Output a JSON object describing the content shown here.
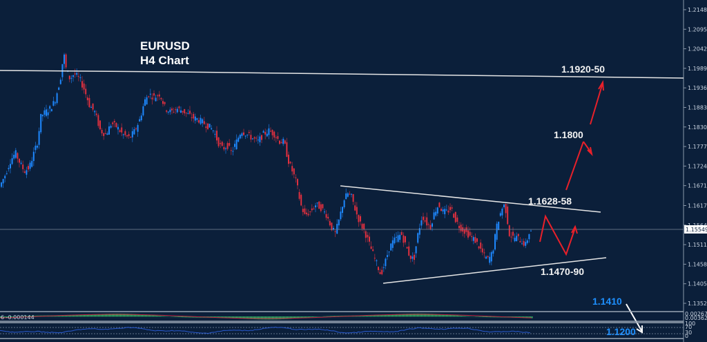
{
  "chart_data": {
    "type": "candlestick",
    "title": "EURUSD",
    "subtitle": "H4 Chart",
    "symbol": "EURUSD",
    "timeframe": "H4",
    "ylim": [
      1.134,
      1.2175
    ],
    "y_ticks": [
      "1.21480",
      "1.20950",
      "1.20420",
      "1.19890",
      "1.19360",
      "1.18830",
      "1.18300",
      "1.17770",
      "1.17240",
      "1.16710",
      "1.16170",
      "1.15640",
      "1.15110",
      "1.14580",
      "1.14050",
      "1.13520"
    ],
    "current_price": "1.15549",
    "grid": false,
    "series_path_approx": [
      [
        0,
        1.166
      ],
      [
        10,
        1.17
      ],
      [
        18,
        1.174
      ],
      [
        25,
        1.176
      ],
      [
        32,
        1.173
      ],
      [
        38,
        1.171
      ],
      [
        45,
        1.172
      ],
      [
        50,
        1.175
      ],
      [
        57,
        1.179
      ],
      [
        62,
        1.186
      ],
      [
        68,
        1.187
      ],
      [
        75,
        1.188
      ],
      [
        82,
        1.19
      ],
      [
        90,
        1.196
      ],
      [
        95,
        1.203
      ],
      [
        98,
        1.199
      ],
      [
        104,
        1.196
      ],
      [
        110,
        1.1975
      ],
      [
        118,
        1.196
      ],
      [
        125,
        1.193
      ],
      [
        132,
        1.189
      ],
      [
        140,
        1.187
      ],
      [
        148,
        1.182
      ],
      [
        156,
        1.181
      ],
      [
        164,
        1.184
      ],
      [
        172,
        1.183
      ],
      [
        180,
        1.181
      ],
      [
        190,
        1.18
      ],
      [
        198,
        1.182
      ],
      [
        205,
        1.185
      ],
      [
        212,
        1.19
      ],
      [
        218,
        1.192
      ],
      [
        226,
        1.191
      ],
      [
        234,
        1.192
      ],
      [
        242,
        1.188
      ],
      [
        250,
        1.187
      ],
      [
        258,
        1.188
      ],
      [
        266,
        1.1875
      ],
      [
        274,
        1.1865
      ],
      [
        282,
        1.1855
      ],
      [
        290,
        1.185
      ],
      [
        298,
        1.184
      ],
      [
        306,
        1.183
      ],
      [
        312,
        1.182
      ],
      [
        318,
        1.179
      ],
      [
        325,
        1.177
      ],
      [
        332,
        1.178
      ],
      [
        338,
        1.176
      ],
      [
        345,
        1.179
      ],
      [
        352,
        1.182
      ],
      [
        360,
        1.181
      ],
      [
        368,
        1.18
      ],
      [
        376,
        1.179
      ],
      [
        384,
        1.181
      ],
      [
        392,
        1.182
      ],
      [
        400,
        1.181
      ],
      [
        408,
        1.179
      ],
      [
        414,
        1.179
      ],
      [
        420,
        1.174
      ],
      [
        426,
        1.171
      ],
      [
        432,
        1.168
      ],
      [
        438,
        1.162
      ],
      [
        444,
        1.159
      ],
      [
        452,
        1.16
      ],
      [
        460,
        1.162
      ],
      [
        468,
        1.161
      ],
      [
        476,
        1.159
      ],
      [
        482,
        1.156
      ],
      [
        488,
        1.154
      ],
      [
        494,
        1.158
      ],
      [
        500,
        1.163
      ],
      [
        506,
        1.165
      ],
      [
        512,
        1.164
      ],
      [
        518,
        1.16
      ],
      [
        524,
        1.157
      ],
      [
        530,
        1.155
      ],
      [
        536,
        1.152
      ],
      [
        542,
        1.149
      ],
      [
        548,
        1.146
      ],
      [
        554,
        1.143
      ],
      [
        560,
        1.146
      ],
      [
        566,
        1.15
      ],
      [
        572,
        1.152
      ],
      [
        578,
        1.153
      ],
      [
        584,
        1.154
      ],
      [
        590,
        1.151
      ],
      [
        596,
        1.148
      ],
      [
        602,
        1.147
      ],
      [
        608,
        1.154
      ],
      [
        614,
        1.159
      ],
      [
        620,
        1.157
      ],
      [
        626,
        1.156
      ],
      [
        632,
        1.16
      ],
      [
        638,
        1.162
      ],
      [
        644,
        1.16
      ],
      [
        650,
        1.16
      ],
      [
        656,
        1.161
      ],
      [
        662,
        1.158
      ],
      [
        668,
        1.156
      ],
      [
        674,
        1.155
      ],
      [
        680,
        1.154
      ],
      [
        686,
        1.153
      ],
      [
        692,
        1.152
      ],
      [
        698,
        1.15
      ],
      [
        704,
        1.148
      ],
      [
        710,
        1.147
      ],
      [
        716,
        1.149
      ],
      [
        722,
        1.156
      ],
      [
        728,
        1.16
      ],
      [
        732,
        1.162
      ],
      [
        736,
        1.16
      ],
      [
        740,
        1.154
      ],
      [
        746,
        1.153
      ],
      [
        752,
        1.153
      ],
      [
        758,
        1.152
      ],
      [
        764,
        1.151
      ],
      [
        770,
        1.155
      ]
    ],
    "annotations": [
      {
        "text": "1.1920-50",
        "type": "resistance",
        "price": 1.1935
      },
      {
        "text": "1.1800",
        "type": "target"
      },
      {
        "text": "1.1628-58",
        "type": "triangle-upper"
      },
      {
        "text": "1.1470-90",
        "type": "triangle-lower"
      },
      {
        "text": "1.1410",
        "type": "downside-target",
        "color": "#1e90ff"
      },
      {
        "text": "1.1200",
        "type": "downside-target",
        "color": "#1e90ff"
      }
    ],
    "indicators": {
      "macd": {
        "label": "6 -0.000144",
        "scale_labels": [
          "0.002671",
          "0.003626"
        ]
      },
      "rsi": {
        "levels": [
          "100",
          "70",
          "30",
          "0"
        ]
      }
    },
    "colors": {
      "background": "#0b1f3a",
      "bull": "#1e88ff",
      "bear": "#e0303f",
      "trendline": "#e6e6e6",
      "projection": "#e8202a",
      "downside": "#1e90ff",
      "macd_hist": "#3cc86a",
      "macd_signal": "#c02040",
      "rsi_line": "#2a5bd0"
    }
  },
  "labels": {
    "title_line1": "EURUSD",
    "title_line2": "H4 Chart",
    "res_label": "1.1920-50",
    "target1": "1.1800",
    "upper": "1.1628-58",
    "lower": "1.1470-90",
    "down1": "1.1410",
    "down2": "1.1200",
    "current": "1.15549",
    "macd_value": "6 -0.000144",
    "macd_scale_top": "0.002671",
    "macd_scale_bot": "0.003626",
    "rsi_100": "100",
    "rsi_70": "70",
    "rsi_30": "30",
    "rsi_0": "0"
  }
}
